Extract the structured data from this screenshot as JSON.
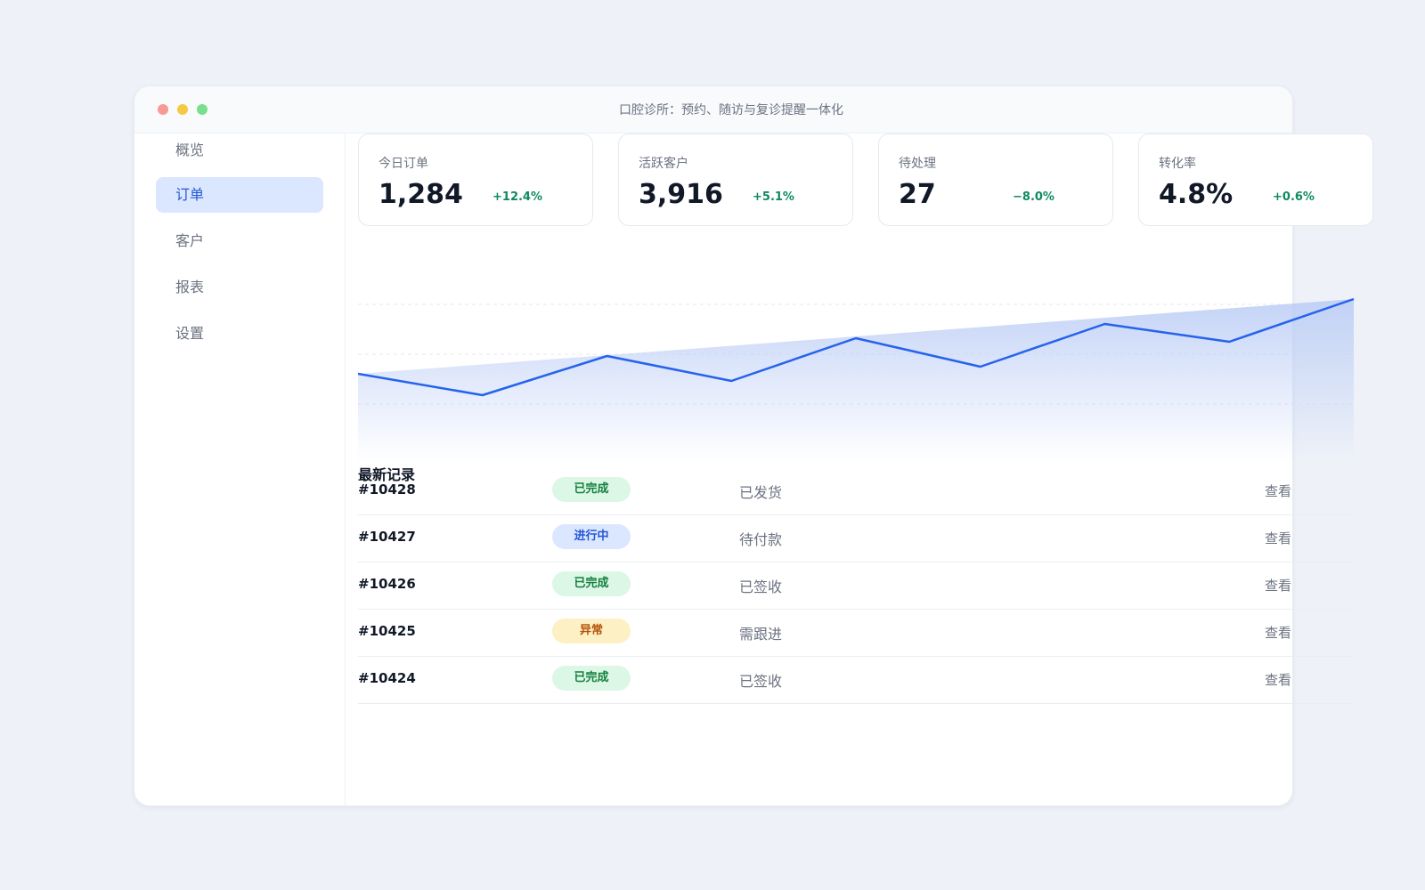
{
  "window": {
    "title": "口腔诊所：预约、随访与复诊提醒一体化"
  },
  "sidebar": {
    "items": [
      {
        "label": "概览",
        "active": false
      },
      {
        "label": "订单",
        "active": true
      },
      {
        "label": "客户",
        "active": false
      },
      {
        "label": "报表",
        "active": false
      },
      {
        "label": "设置",
        "active": false
      }
    ]
  },
  "kpis": [
    {
      "label": "今日订单",
      "value": "1,284",
      "delta": "+12.4%"
    },
    {
      "label": "活跃客户",
      "value": "3,916",
      "delta": "+5.1%"
    },
    {
      "label": "待处理",
      "value": "27",
      "delta": "−8.0%"
    },
    {
      "label": "转化率",
      "value": "4.8%",
      "delta": "+0.6%"
    }
  ],
  "chart_data": {
    "type": "line",
    "x": [
      1,
      2,
      3,
      4,
      5,
      6,
      7,
      8,
      9
    ],
    "series": [
      {
        "values": [
          40,
          28,
          50,
          36,
          60,
          44,
          68,
          58,
          82
        ]
      }
    ],
    "ylim": [
      0,
      100
    ],
    "grid": true,
    "title": "",
    "xlabel": "",
    "ylabel": "",
    "colors": {
      "line": "#2563eb",
      "fill": "#c7d6f7"
    }
  },
  "records": {
    "title": "最新记录",
    "rows": [
      {
        "id": "#10428",
        "status": "已完成",
        "status_type": "done",
        "note": "已发货",
        "action": "查看"
      },
      {
        "id": "#10427",
        "status": "进行中",
        "status_type": "progress",
        "note": "待付款",
        "action": "查看"
      },
      {
        "id": "#10426",
        "status": "已完成",
        "status_type": "done",
        "note": "已签收",
        "action": "查看"
      },
      {
        "id": "#10425",
        "status": "异常",
        "status_type": "abnormal",
        "note": "需跟进",
        "action": "查看"
      },
      {
        "id": "#10424",
        "status": "已完成",
        "status_type": "done",
        "note": "已签收",
        "action": "查看"
      }
    ]
  }
}
